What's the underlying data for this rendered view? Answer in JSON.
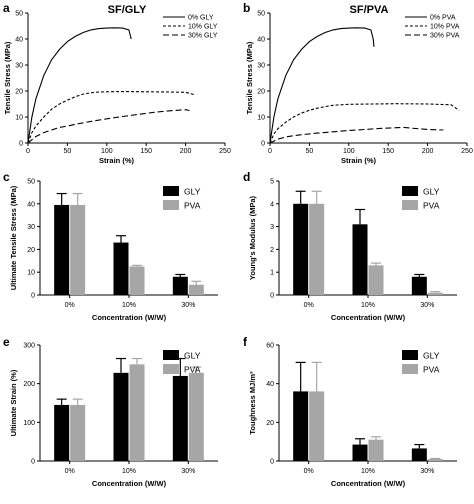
{
  "chart_data": [
    {
      "panel": "a",
      "type": "line",
      "title": "SF/GLY",
      "xlabel": "Strain (%)",
      "ylabel": "Tensile Stress (MPa)",
      "xlim": [
        0,
        250
      ],
      "ylim": [
        0,
        50
      ],
      "xticks": [
        0,
        50,
        100,
        150,
        200,
        250
      ],
      "yticks": [
        0,
        10,
        20,
        30,
        40,
        50
      ],
      "legend": "top-right",
      "series": [
        {
          "name": "0% GLY",
          "style": "solid",
          "x": [
            0,
            5,
            10,
            20,
            30,
            40,
            50,
            60,
            70,
            80,
            90,
            100,
            110,
            120,
            128,
            131
          ],
          "y": [
            0,
            10,
            17,
            26,
            32,
            36,
            39,
            41,
            42.5,
            43.5,
            44,
            44.2,
            44.3,
            44.2,
            43.5,
            40
          ]
        },
        {
          "name": "10% GLY",
          "style": "dashed",
          "x": [
            0,
            5,
            10,
            20,
            30,
            40,
            50,
            60,
            70,
            80,
            90,
            100,
            120,
            150,
            180,
            200,
            212
          ],
          "y": [
            0,
            4,
            6.5,
            10,
            13,
            15,
            16.5,
            17.8,
            18.8,
            19.3,
            19.6,
            19.7,
            19.8,
            19.7,
            19.6,
            19.5,
            18.5
          ]
        },
        {
          "name": "30% GLY",
          "style": "dashed",
          "x": [
            0,
            10,
            20,
            30,
            40,
            50,
            60,
            80,
            100,
            120,
            140,
            160,
            180,
            200,
            205
          ],
          "y": [
            0,
            2.5,
            4,
            5,
            6,
            6.5,
            7.2,
            8.3,
            9.3,
            10.2,
            11,
            11.8,
            12.4,
            12.8,
            12.5
          ]
        }
      ]
    },
    {
      "panel": "b",
      "type": "line",
      "title": "SF/PVA",
      "xlabel": "Strain (%)",
      "ylabel": "Tensile Stress (MPa)",
      "xlim": [
        0,
        250
      ],
      "ylim": [
        0,
        50
      ],
      "xticks": [
        0,
        50,
        100,
        150,
        200,
        250
      ],
      "yticks": [
        0,
        10,
        20,
        30,
        40,
        50
      ],
      "legend": "top-right",
      "series": [
        {
          "name": "0% PVA",
          "style": "solid",
          "x": [
            0,
            5,
            10,
            20,
            30,
            40,
            50,
            60,
            70,
            80,
            90,
            100,
            110,
            120,
            128,
            131,
            132
          ],
          "y": [
            0,
            10,
            17,
            26,
            32,
            36,
            39,
            41,
            42.5,
            43.5,
            44,
            44.2,
            44.3,
            44.2,
            43.5,
            40,
            37
          ]
        },
        {
          "name": "10% PVA",
          "style": "dashed",
          "x": [
            0,
            5,
            10,
            20,
            30,
            40,
            50,
            60,
            70,
            80,
            90,
            100,
            130,
            160,
            200,
            230,
            240
          ],
          "y": [
            0,
            3.5,
            5.5,
            8,
            10,
            11.5,
            12.6,
            13.4,
            14,
            14.5,
            14.7,
            14.9,
            15,
            15.1,
            15,
            14.7,
            12.5
          ]
        },
        {
          "name": "30% PVA",
          "style": "dashed",
          "x": [
            0,
            10,
            20,
            30,
            40,
            60,
            80,
            100,
            120,
            140,
            160,
            170,
            180,
            200,
            220
          ],
          "y": [
            0,
            1.5,
            2.3,
            2.8,
            3.2,
            3.8,
            4.3,
            4.8,
            5.2,
            5.6,
            5.9,
            6,
            5.7,
            5.2,
            5
          ]
        }
      ]
    },
    {
      "panel": "c",
      "type": "bar",
      "xlabel": "Concentration (W/W)",
      "ylabel": "Ultimate Tensile Stress (MPa)",
      "categories": [
        "0%",
        "10%",
        "30%"
      ],
      "ylim": [
        0,
        50
      ],
      "yticks": [
        0,
        10,
        20,
        30,
        40,
        50
      ],
      "legend": "top-right",
      "series": [
        {
          "name": "GLY",
          "color": "#000000",
          "values": [
            39.5,
            23,
            8
          ],
          "errors": [
            5,
            3,
            1
          ]
        },
        {
          "name": "PVA",
          "color": "#a6a6a6",
          "values": [
            39.5,
            12.5,
            4.5
          ],
          "errors": [
            5,
            0.5,
            1.5
          ]
        }
      ]
    },
    {
      "panel": "d",
      "type": "bar",
      "xlabel": "Concentration (W/W)",
      "ylabel": "Young's Modulus (MPa)",
      "categories": [
        "0%",
        "10%",
        "30%"
      ],
      "ylim": [
        0,
        5
      ],
      "yticks": [
        0,
        1,
        2,
        3,
        4,
        5
      ],
      "legend": "top-right",
      "series": [
        {
          "name": "GLY",
          "color": "#000000",
          "values": [
            4.0,
            3.1,
            0.8
          ],
          "errors": [
            0.55,
            0.65,
            0.1
          ]
        },
        {
          "name": "PVA",
          "color": "#a6a6a6",
          "values": [
            4.0,
            1.3,
            0.1
          ],
          "errors": [
            0.55,
            0.1,
            0.05
          ]
        }
      ]
    },
    {
      "panel": "e",
      "type": "bar",
      "xlabel": "Concentration (W/W)",
      "ylabel": "Ultimate Strain (%)",
      "categories": [
        "0%",
        "10%",
        "30%"
      ],
      "ylim": [
        0,
        300
      ],
      "yticks": [
        0,
        100,
        200,
        300
      ],
      "legend": "top-right",
      "series": [
        {
          "name": "GLY",
          "color": "#000000",
          "values": [
            145,
            228,
            220
          ],
          "errors": [
            15,
            37,
            45
          ]
        },
        {
          "name": "PVA",
          "color": "#a6a6a6",
          "values": [
            145,
            250,
            228
          ],
          "errors": [
            15,
            15,
            15
          ]
        }
      ]
    },
    {
      "panel": "f",
      "type": "bar",
      "xlabel": "Concentration (W/W)",
      "ylabel": "Toughness MJ/m³",
      "categories": [
        "0%",
        "10%",
        "30%"
      ],
      "ylim": [
        0,
        60
      ],
      "yticks": [
        0,
        20,
        40,
        60
      ],
      "legend": "top-right",
      "series": [
        {
          "name": "GLY",
          "color": "#000000",
          "values": [
            36,
            8.5,
            6.5
          ],
          "errors": [
            15,
            3,
            2
          ]
        },
        {
          "name": "PVA",
          "color": "#a6a6a6",
          "values": [
            36,
            11,
            1
          ],
          "errors": [
            15,
            1.5,
            0.3
          ]
        }
      ]
    }
  ]
}
